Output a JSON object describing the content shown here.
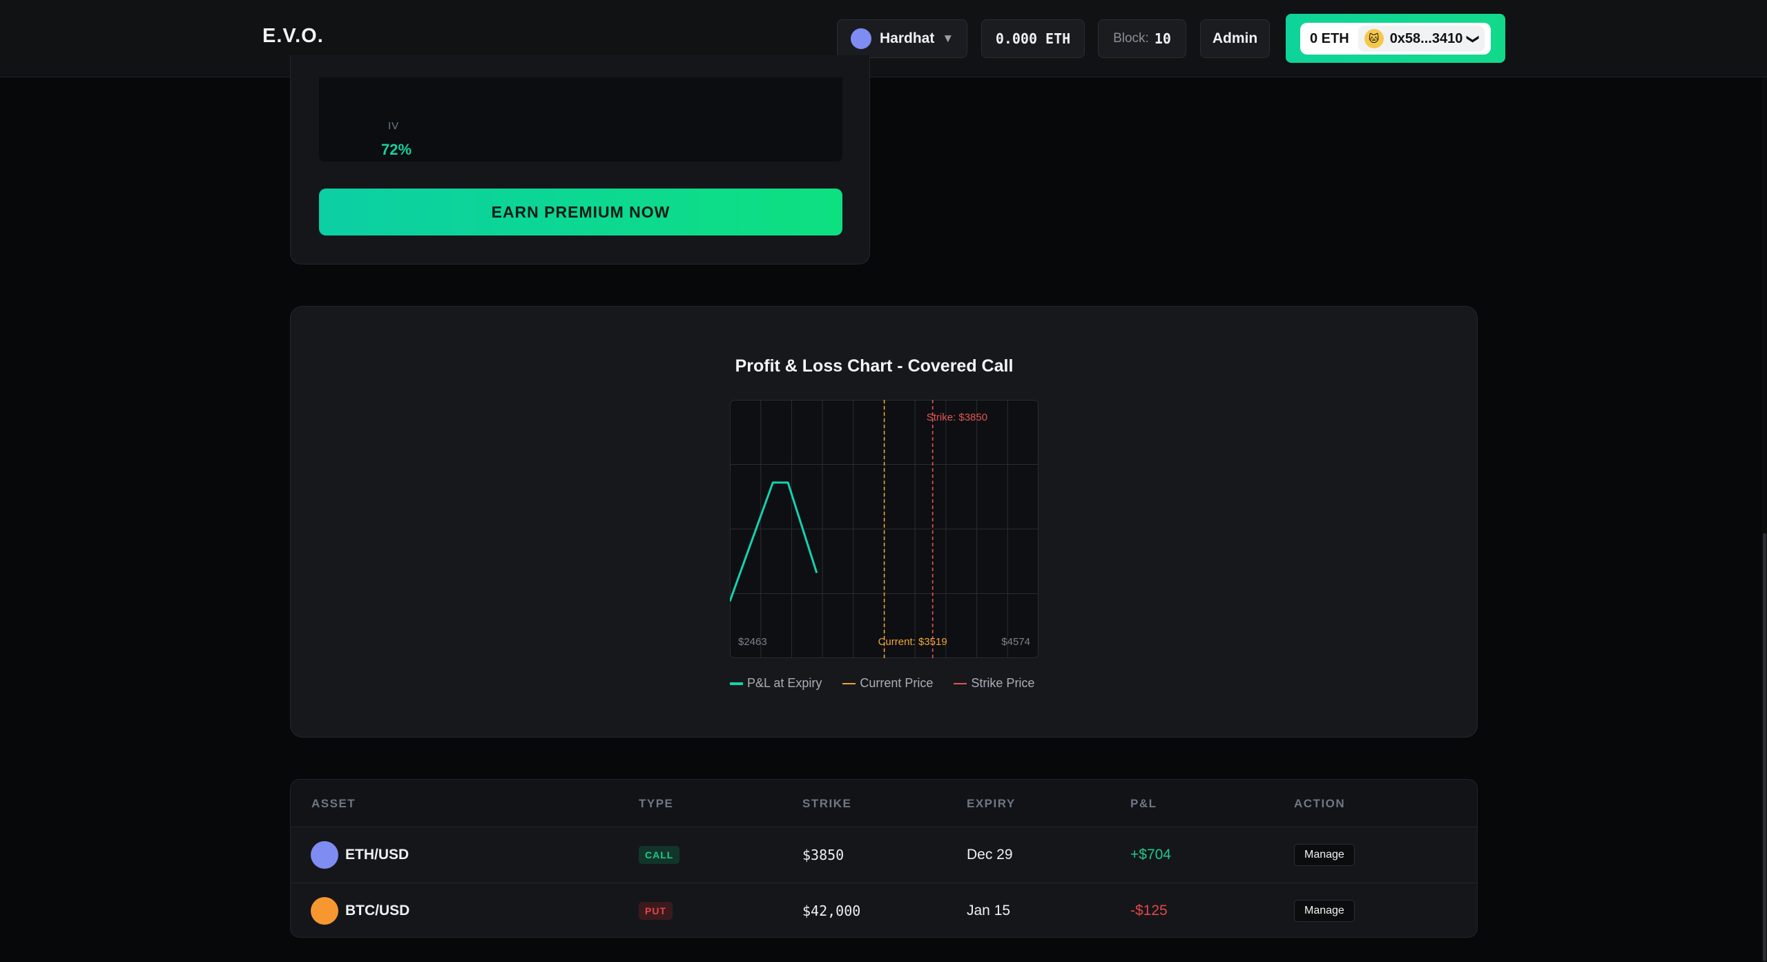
{
  "header": {
    "logo": "E.V.O.",
    "network": {
      "label": "Hardhat",
      "caret": "▼"
    },
    "balance": "0.000 ETH",
    "block": {
      "label": "Block:",
      "value": "10"
    },
    "admin_label": "Admin",
    "wallet": {
      "eth": "0 ETH",
      "address": "0x58...3410",
      "avatar": "🐱",
      "chevron": "❯"
    }
  },
  "top_card": {
    "iv_label": "IV",
    "iv_value": "72%",
    "earn_button": "EARN PREMIUM NOW"
  },
  "chart_card": {
    "title": "Profit & Loss Chart - Covered Call",
    "legend": [
      {
        "label": "P&L at Expiry",
        "color": "#13d3b0"
      },
      {
        "label": "Current Price",
        "color": "#f0a53a"
      },
      {
        "label": "Strike Price",
        "color": "#e25555"
      }
    ]
  },
  "chart_data": {
    "type": "line",
    "title": "Profit & Loss Chart - Covered Call",
    "xlim": [
      2463,
      4574
    ],
    "x_tick_labels": [
      "$2463",
      "$4574"
    ],
    "series": [
      {
        "name": "P&L at Expiry",
        "x": [
          2463,
          2757,
          2860,
          3057
        ],
        "y": [
          0.22,
          0.68,
          0.68,
          0.33
        ]
      }
    ],
    "reference_lines": [
      {
        "name": "Current Price",
        "x": 3519,
        "label": "Current: $3519",
        "color": "#f0a53a"
      },
      {
        "name": "Strike Price",
        "x": 3850,
        "label": "Strike: $3850",
        "color": "#e25555"
      }
    ],
    "grid": true,
    "legend": "bottom"
  },
  "table": {
    "headers": [
      "ASSET",
      "TYPE",
      "STRIKE",
      "EXPIRY",
      "P&L",
      "ACTION"
    ],
    "rows": [
      {
        "asset": "ETH/USD",
        "asset_color": "#7f8cf2",
        "type": "CALL",
        "type_color": "#1ec98a",
        "type_bg": "#12352a",
        "strike": "$3850",
        "expiry": "Dec 29",
        "pnl": "+$704",
        "pnl_color": "#1ec98a",
        "action": "Manage"
      },
      {
        "asset": "BTC/USD",
        "asset_color": "#f7972f",
        "type": "PUT",
        "type_color": "#e0474c",
        "type_bg": "#3b1a1d",
        "strike": "$42,000",
        "expiry": "Jan 15",
        "pnl": "-$125",
        "pnl_color": "#e0474c",
        "action": "Manage"
      }
    ]
  }
}
